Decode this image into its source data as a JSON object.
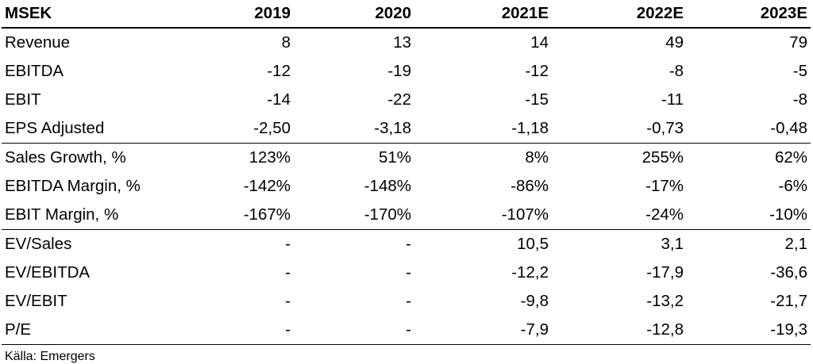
{
  "table": {
    "header": [
      "MSEK",
      "2019",
      "2020",
      "2021E",
      "2022E",
      "2023E"
    ],
    "rows": [
      {
        "label": "Revenue",
        "values": [
          "8",
          "13",
          "14",
          "49",
          "79"
        ]
      },
      {
        "label": "EBITDA",
        "values": [
          "-12",
          "-19",
          "-12",
          "-8",
          "-5"
        ]
      },
      {
        "label": "EBIT",
        "values": [
          "-14",
          "-22",
          "-15",
          "-11",
          "-8"
        ]
      },
      {
        "label": "EPS Adjusted",
        "values": [
          "-2,50",
          "-3,18",
          "-1,18",
          "-0,73",
          "-0,48"
        ]
      },
      {
        "label": "Sales Growth, %",
        "values": [
          "123%",
          "51%",
          "8%",
          "255%",
          "62%"
        ]
      },
      {
        "label": "EBITDA Margin, %",
        "values": [
          "-142%",
          "-148%",
          "-86%",
          "-17%",
          "-6%"
        ]
      },
      {
        "label": "EBIT Margin, %",
        "values": [
          "-167%",
          "-170%",
          "-107%",
          "-24%",
          "-10%"
        ]
      },
      {
        "label": "EV/Sales",
        "values": [
          "-",
          "-",
          "10,5",
          "3,1",
          "2,1"
        ]
      },
      {
        "label": "EV/EBITDA",
        "values": [
          "-",
          "-",
          "-12,2",
          "-17,9",
          "-36,6"
        ]
      },
      {
        "label": "EV/EBIT",
        "values": [
          "-",
          "-",
          "-9,8",
          "-13,2",
          "-21,7"
        ]
      },
      {
        "label": "P/E",
        "values": [
          "-",
          "-",
          "-7,9",
          "-12,8",
          "-19,3"
        ]
      }
    ]
  },
  "source": "Källa: Emergers"
}
